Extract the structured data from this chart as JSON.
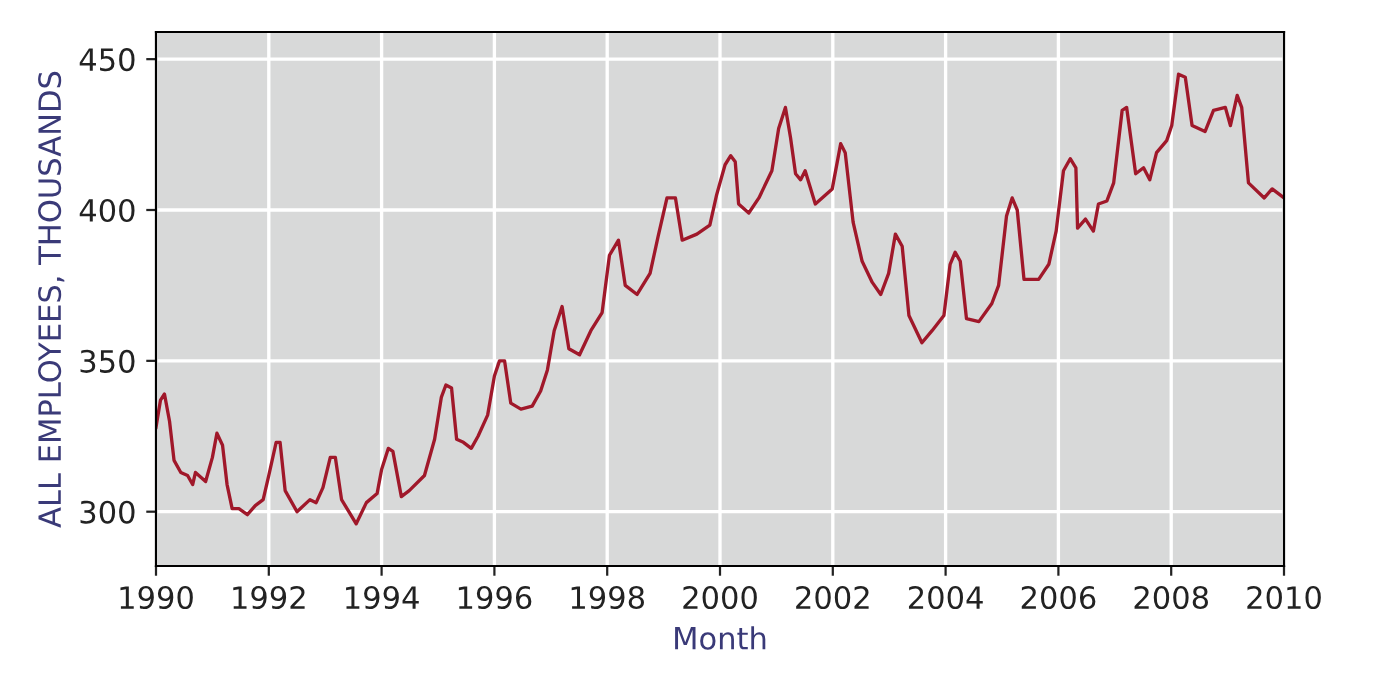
{
  "chart_data": {
    "type": "line",
    "xlabel": "Month",
    "ylabel": "ALL EMPLOYEES, THOUSANDS",
    "x": [
      1990.0,
      1990.08,
      1990.15,
      1990.24,
      1990.32,
      1990.44,
      1990.56,
      1990.65,
      1990.7,
      1990.88,
      1991.0,
      1991.08,
      1991.18,
      1991.26,
      1991.35,
      1991.47,
      1991.62,
      1991.76,
      1991.9,
      1992.0,
      1992.13,
      1992.2,
      1992.29,
      1992.5,
      1992.73,
      1992.84,
      1992.96,
      1993.09,
      1993.18,
      1993.29,
      1993.55,
      1993.73,
      1993.92,
      1994.0,
      1994.12,
      1994.2,
      1994.35,
      1994.49,
      1994.76,
      1994.94,
      1995.06,
      1995.14,
      1995.24,
      1995.33,
      1995.45,
      1995.59,
      1995.71,
      1995.88,
      1996.0,
      1996.09,
      1996.18,
      1996.29,
      1996.47,
      1996.67,
      1996.82,
      1996.94,
      1997.06,
      1997.2,
      1997.32,
      1997.51,
      1997.71,
      1997.91,
      1998.04,
      1998.2,
      1998.32,
      1998.53,
      1998.76,
      1998.9,
      1999.06,
      1999.21,
      1999.33,
      1999.59,
      1999.82,
      1999.94,
      2000.09,
      2000.19,
      2000.27,
      2000.33,
      2000.51,
      2000.69,
      2000.92,
      2001.04,
      2001.16,
      2001.25,
      2001.34,
      2001.43,
      2001.51,
      2001.69,
      2001.99,
      2002.14,
      2002.22,
      2002.36,
      2002.52,
      2002.7,
      2002.85,
      2002.99,
      2003.11,
      2003.23,
      2003.35,
      2003.58,
      2003.76,
      2003.97,
      2004.08,
      2004.17,
      2004.26,
      2004.37,
      2004.59,
      2004.82,
      2004.94,
      2005.08,
      2005.18,
      2005.27,
      2005.39,
      2005.65,
      2005.83,
      2005.96,
      2006.09,
      2006.21,
      2006.31,
      2006.34,
      2006.48,
      2006.62,
      2006.71,
      2006.86,
      2006.98,
      2007.13,
      2007.21,
      2007.37,
      2007.51,
      2007.62,
      2007.74,
      2007.92,
      2008.01,
      2008.13,
      2008.25,
      2008.37,
      2008.6,
      2008.75,
      2008.96,
      2009.05,
      2009.17,
      2009.25,
      2009.37,
      2009.65,
      2009.79,
      2010.0
    ],
    "series": [
      {
        "color": "#a0182a",
        "values": [
          328,
          337,
          339,
          330,
          317,
          313,
          312,
          309,
          313,
          310,
          318,
          326,
          322,
          309,
          301,
          301,
          299,
          302,
          304,
          312,
          323,
          323,
          307,
          300,
          304,
          303,
          308,
          318,
          318,
          304,
          296,
          303,
          306,
          314,
          321,
          320,
          305,
          307,
          312,
          324,
          338,
          342,
          341,
          324,
          323,
          321,
          325,
          332,
          345,
          350,
          350,
          336,
          334,
          335,
          340,
          347,
          360,
          368,
          354,
          352,
          360,
          366,
          385,
          390,
          375,
          372,
          379,
          391,
          404,
          404,
          390,
          392,
          395,
          405,
          415,
          418,
          416,
          402,
          399,
          404,
          413,
          427,
          434,
          424,
          412,
          410,
          413,
          402,
          407,
          422,
          419,
          396,
          383,
          376,
          372,
          379,
          392,
          388,
          365,
          356,
          360,
          365,
          382,
          386,
          383,
          364,
          363,
          369,
          375,
          398,
          404,
          400,
          377,
          377,
          382,
          393,
          413,
          417,
          414,
          394,
          397,
          393,
          402,
          403,
          409,
          433,
          434,
          412,
          414,
          410,
          419,
          423,
          428,
          445,
          444,
          428,
          426,
          433,
          434,
          428,
          438,
          434,
          409,
          404,
          407,
          404
        ]
      }
    ],
    "xlim": [
      1990,
      2010
    ],
    "xticks": [
      1990,
      1992,
      1994,
      1996,
      1998,
      2000,
      2002,
      2004,
      2006,
      2008,
      2010
    ],
    "ylim": [
      282,
      459
    ],
    "yticks": [
      300,
      350,
      400,
      450
    ],
    "grid": true,
    "marker": "none",
    "line_style": "solid"
  }
}
